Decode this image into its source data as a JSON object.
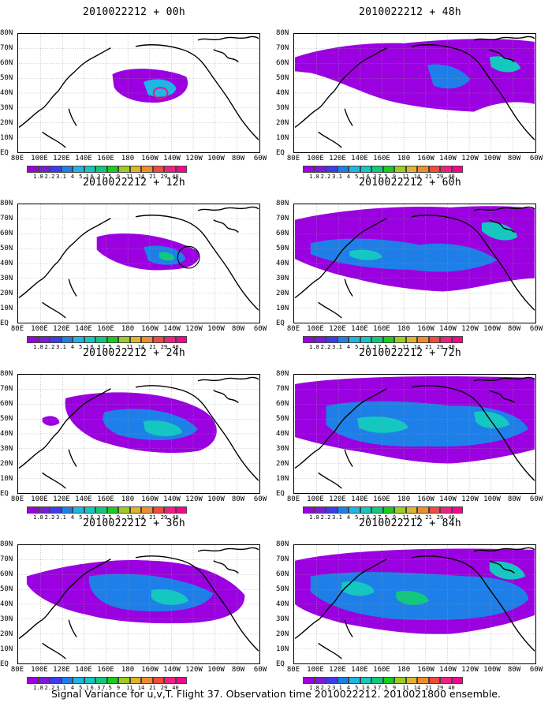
{
  "colorbar": {
    "labels": [
      "1.8",
      "2.2",
      "3.1",
      "4",
      "5.1",
      "6.3",
      "7.5",
      "9",
      "11",
      "14",
      "21",
      "29",
      "40"
    ],
    "colors": [
      "#9b00e0",
      "#7a1bd6",
      "#3b3bef",
      "#1e7fe8",
      "#1db6e6",
      "#14c7c0",
      "#12c87d",
      "#19cc1f",
      "#9bcc22",
      "#e0b42a",
      "#ef8d2c",
      "#f04b3c",
      "#f02080",
      "#ff0090"
    ]
  },
  "axes": {
    "y_labels": [
      "80N",
      "70N",
      "60N",
      "50N",
      "40N",
      "30N",
      "20N",
      "10N",
      "EQ"
    ],
    "x_labels": [
      "80E",
      "100E",
      "120E",
      "140E",
      "160E",
      "180",
      "160W",
      "140W",
      "120W",
      "100W",
      "80W",
      "60W"
    ]
  },
  "panels": [
    {
      "title": "2010022212 + 00h",
      "level": 0
    },
    {
      "title": "2010022212 + 48h",
      "level": 4
    },
    {
      "title": "2010022212 + 12h",
      "level": 1
    },
    {
      "title": "2010022212 + 60h",
      "level": 5
    },
    {
      "title": "2010022212 + 24h",
      "level": 2
    },
    {
      "title": "2010022212 + 72h",
      "level": 6
    },
    {
      "title": "2010022212 + 36h",
      "level": 3
    },
    {
      "title": "2010022212 + 84h",
      "level": 7
    }
  ],
  "caption": "Signal Variance for u,v,T. Flight 37. Observation time 2010022212. 2010021800 ensemble."
}
